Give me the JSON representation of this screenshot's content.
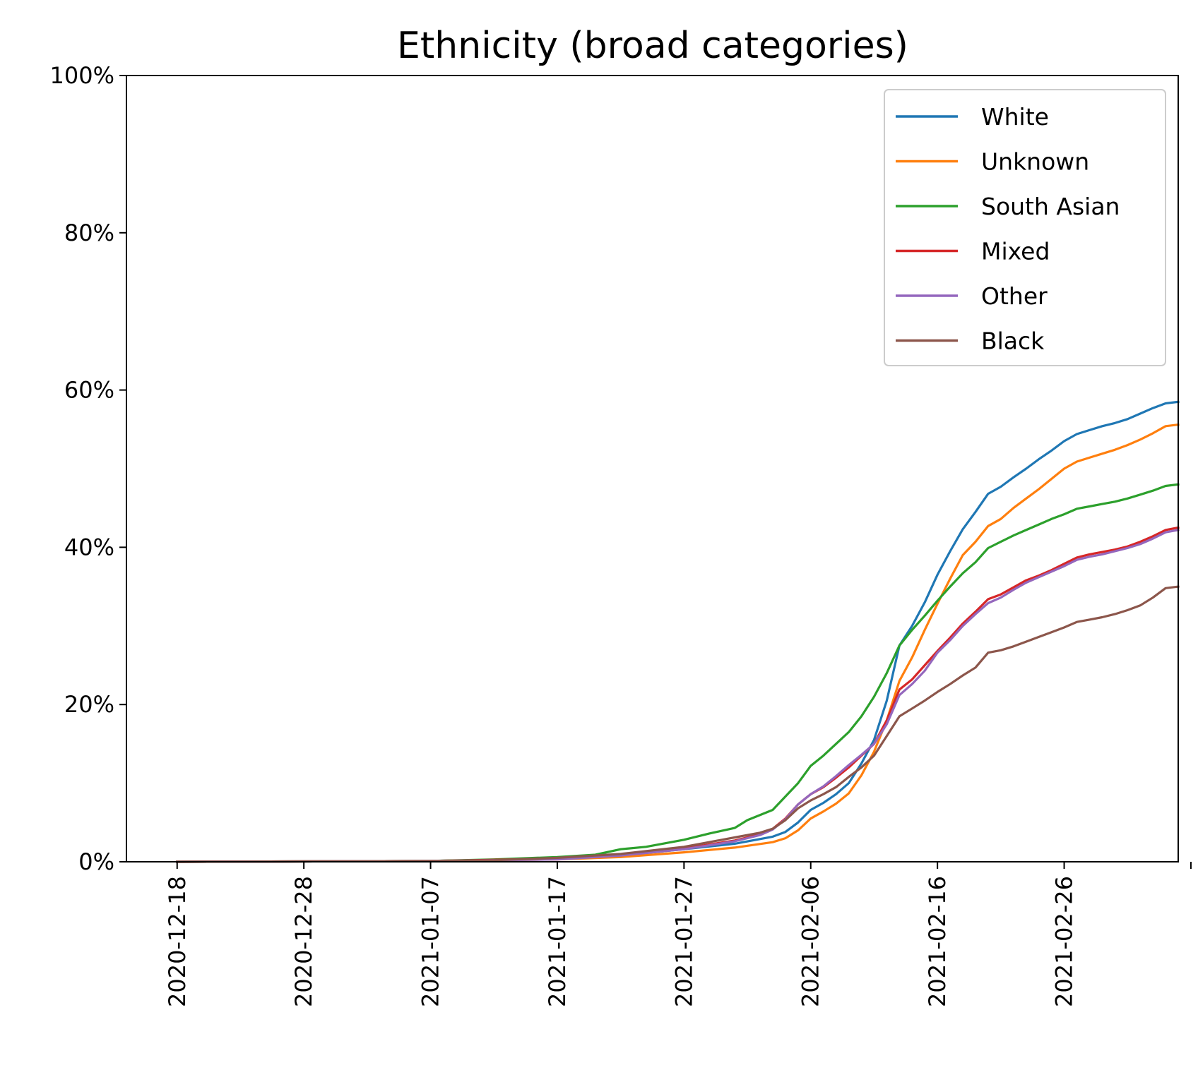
{
  "chart_data": {
    "type": "line",
    "title": "Ethnicity (broad categories)",
    "xlabel": "",
    "ylabel": "",
    "x_type": "date",
    "xlim": [
      "2020-12-14",
      "2021-03-07"
    ],
    "ylim": [
      0,
      100
    ],
    "y_unit": "%",
    "yticks": [
      0,
      20,
      40,
      60,
      80,
      100
    ],
    "ytick_labels": [
      "0%",
      "20%",
      "40%",
      "60%",
      "80%",
      "100%"
    ],
    "xticks": [
      "2020-12-18",
      "2020-12-28",
      "2021-01-07",
      "2021-01-17",
      "2021-01-27",
      "2021-02-06",
      "2021-02-16",
      "2021-02-26",
      "2021-03-08"
    ],
    "xtick_labels": [
      "2020-12-18",
      "2020-12-28",
      "2021-01-07",
      "2021-01-17",
      "2021-01-27",
      "2021-02-06",
      "2021-02-16",
      "2021-02-26",
      ""
    ],
    "grid": false,
    "legend_position": "top-right",
    "series": [
      {
        "name": "White",
        "color": "#1f77b4",
        "points": [
          [
            "2020-12-18",
            0
          ],
          [
            "2021-01-07",
            0.1
          ],
          [
            "2021-01-17",
            0.4
          ],
          [
            "2021-01-22",
            0.8
          ],
          [
            "2021-01-27",
            1.6
          ],
          [
            "2021-01-31",
            2.3
          ],
          [
            "2021-02-03",
            3.2
          ],
          [
            "2021-02-04",
            3.8
          ],
          [
            "2021-02-05",
            5.0
          ],
          [
            "2021-02-06",
            6.6
          ],
          [
            "2021-02-07",
            7.5
          ],
          [
            "2021-02-08",
            8.6
          ],
          [
            "2021-02-09",
            10.0
          ],
          [
            "2021-02-10",
            12.5
          ],
          [
            "2021-02-11",
            15.5
          ],
          [
            "2021-02-12",
            20.5
          ],
          [
            "2021-02-13",
            27.5
          ],
          [
            "2021-02-14",
            30.0
          ],
          [
            "2021-02-15",
            33.0
          ],
          [
            "2021-02-16",
            36.5
          ],
          [
            "2021-02-17",
            39.5
          ],
          [
            "2021-02-18",
            42.3
          ],
          [
            "2021-02-19",
            44.5
          ],
          [
            "2021-02-20",
            46.8
          ],
          [
            "2021-02-21",
            47.7
          ],
          [
            "2021-02-22",
            48.9
          ],
          [
            "2021-02-23",
            50.0
          ],
          [
            "2021-02-24",
            51.2
          ],
          [
            "2021-02-25",
            52.3
          ],
          [
            "2021-02-26",
            53.5
          ],
          [
            "2021-02-27",
            54.4
          ],
          [
            "2021-02-28",
            54.9
          ],
          [
            "2021-03-01",
            55.4
          ],
          [
            "2021-03-02",
            55.8
          ],
          [
            "2021-03-03",
            56.3
          ],
          [
            "2021-03-04",
            57.0
          ],
          [
            "2021-03-05",
            57.7
          ],
          [
            "2021-03-06",
            58.3
          ],
          [
            "2021-03-07",
            58.5
          ]
        ]
      },
      {
        "name": "Unknown",
        "color": "#ff7f0e",
        "points": [
          [
            "2020-12-18",
            0
          ],
          [
            "2021-01-07",
            0.1
          ],
          [
            "2021-01-17",
            0.3
          ],
          [
            "2021-01-22",
            0.6
          ],
          [
            "2021-01-27",
            1.2
          ],
          [
            "2021-01-31",
            1.8
          ],
          [
            "2021-02-03",
            2.5
          ],
          [
            "2021-02-04",
            3.0
          ],
          [
            "2021-02-05",
            4.0
          ],
          [
            "2021-02-06",
            5.5
          ],
          [
            "2021-02-07",
            6.4
          ],
          [
            "2021-02-08",
            7.4
          ],
          [
            "2021-02-09",
            8.7
          ],
          [
            "2021-02-10",
            11.0
          ],
          [
            "2021-02-11",
            14.0
          ],
          [
            "2021-02-12",
            18.0
          ],
          [
            "2021-02-13",
            23.0
          ],
          [
            "2021-02-14",
            26.0
          ],
          [
            "2021-02-15",
            29.5
          ],
          [
            "2021-02-16",
            32.8
          ],
          [
            "2021-02-17",
            36.0
          ],
          [
            "2021-02-18",
            39.0
          ],
          [
            "2021-02-19",
            40.7
          ],
          [
            "2021-02-20",
            42.7
          ],
          [
            "2021-02-21",
            43.6
          ],
          [
            "2021-02-22",
            45.0
          ],
          [
            "2021-02-23",
            46.2
          ],
          [
            "2021-02-24",
            47.4
          ],
          [
            "2021-02-25",
            48.7
          ],
          [
            "2021-02-26",
            50.0
          ],
          [
            "2021-02-27",
            50.9
          ],
          [
            "2021-02-28",
            51.4
          ],
          [
            "2021-03-01",
            51.9
          ],
          [
            "2021-03-02",
            52.4
          ],
          [
            "2021-03-03",
            53.0
          ],
          [
            "2021-03-04",
            53.7
          ],
          [
            "2021-03-05",
            54.5
          ],
          [
            "2021-03-06",
            55.4
          ],
          [
            "2021-03-07",
            55.6
          ]
        ]
      },
      {
        "name": "South Asian",
        "color": "#2ca02c",
        "points": [
          [
            "2020-12-18",
            0
          ],
          [
            "2021-01-07",
            0.1
          ],
          [
            "2021-01-12",
            0.3
          ],
          [
            "2021-01-17",
            0.6
          ],
          [
            "2021-01-20",
            0.9
          ],
          [
            "2021-01-22",
            1.6
          ],
          [
            "2021-01-24",
            1.9
          ],
          [
            "2021-01-27",
            2.8
          ],
          [
            "2021-01-29",
            3.6
          ],
          [
            "2021-01-31",
            4.3
          ],
          [
            "2021-02-01",
            5.3
          ],
          [
            "2021-02-03",
            6.6
          ],
          [
            "2021-02-04",
            8.3
          ],
          [
            "2021-02-05",
            10.0
          ],
          [
            "2021-02-06",
            12.2
          ],
          [
            "2021-02-07",
            13.5
          ],
          [
            "2021-02-08",
            15.0
          ],
          [
            "2021-02-09",
            16.5
          ],
          [
            "2021-02-10",
            18.5
          ],
          [
            "2021-02-11",
            21.0
          ],
          [
            "2021-02-12",
            24.0
          ],
          [
            "2021-02-13",
            27.5
          ],
          [
            "2021-02-14",
            29.5
          ],
          [
            "2021-02-15",
            31.3
          ],
          [
            "2021-02-16",
            33.2
          ],
          [
            "2021-02-17",
            35.0
          ],
          [
            "2021-02-18",
            36.7
          ],
          [
            "2021-02-19",
            38.1
          ],
          [
            "2021-02-20",
            39.9
          ],
          [
            "2021-02-21",
            40.7
          ],
          [
            "2021-02-22",
            41.5
          ],
          [
            "2021-02-23",
            42.2
          ],
          [
            "2021-02-24",
            42.9
          ],
          [
            "2021-02-25",
            43.6
          ],
          [
            "2021-02-26",
            44.2
          ],
          [
            "2021-02-27",
            44.9
          ],
          [
            "2021-02-28",
            45.2
          ],
          [
            "2021-03-01",
            45.5
          ],
          [
            "2021-03-02",
            45.8
          ],
          [
            "2021-03-03",
            46.2
          ],
          [
            "2021-03-04",
            46.7
          ],
          [
            "2021-03-05",
            47.2
          ],
          [
            "2021-03-06",
            47.8
          ],
          [
            "2021-03-07",
            48.0
          ]
        ]
      },
      {
        "name": "Mixed",
        "color": "#d62728",
        "points": [
          [
            "2020-12-18",
            0
          ],
          [
            "2021-01-07",
            0.1
          ],
          [
            "2021-01-17",
            0.4
          ],
          [
            "2021-01-22",
            0.9
          ],
          [
            "2021-01-27",
            1.7
          ],
          [
            "2021-01-31",
            2.7
          ],
          [
            "2021-02-02",
            3.5
          ],
          [
            "2021-02-03",
            4.2
          ],
          [
            "2021-02-04",
            5.5
          ],
          [
            "2021-02-05",
            7.3
          ],
          [
            "2021-02-06",
            8.6
          ],
          [
            "2021-02-07",
            9.5
          ],
          [
            "2021-02-08",
            10.7
          ],
          [
            "2021-02-09",
            12.0
          ],
          [
            "2021-02-10",
            13.5
          ],
          [
            "2021-02-11",
            15.0
          ],
          [
            "2021-02-12",
            18.0
          ],
          [
            "2021-02-13",
            21.9
          ],
          [
            "2021-02-14",
            23.2
          ],
          [
            "2021-02-15",
            25.0
          ],
          [
            "2021-02-16",
            26.8
          ],
          [
            "2021-02-17",
            28.5
          ],
          [
            "2021-02-18",
            30.3
          ],
          [
            "2021-02-19",
            31.8
          ],
          [
            "2021-02-20",
            33.4
          ],
          [
            "2021-02-21",
            34.0
          ],
          [
            "2021-02-22",
            34.9
          ],
          [
            "2021-02-23",
            35.8
          ],
          [
            "2021-02-24",
            36.4
          ],
          [
            "2021-02-25",
            37.1
          ],
          [
            "2021-02-26",
            37.9
          ],
          [
            "2021-02-27",
            38.7
          ],
          [
            "2021-02-28",
            39.1
          ],
          [
            "2021-03-01",
            39.4
          ],
          [
            "2021-03-02",
            39.7
          ],
          [
            "2021-03-03",
            40.1
          ],
          [
            "2021-03-04",
            40.7
          ],
          [
            "2021-03-05",
            41.4
          ],
          [
            "2021-03-06",
            42.2
          ],
          [
            "2021-03-07",
            42.5
          ]
        ]
      },
      {
        "name": "Other",
        "color": "#9467bd",
        "points": [
          [
            "2020-12-18",
            0
          ],
          [
            "2021-01-07",
            0.1
          ],
          [
            "2021-01-17",
            0.3
          ],
          [
            "2021-01-22",
            0.8
          ],
          [
            "2021-01-27",
            1.6
          ],
          [
            "2021-01-31",
            2.6
          ],
          [
            "2021-02-02",
            3.4
          ],
          [
            "2021-02-03",
            4.1
          ],
          [
            "2021-02-04",
            5.4
          ],
          [
            "2021-02-05",
            7.3
          ],
          [
            "2021-02-06",
            8.6
          ],
          [
            "2021-02-07",
            9.6
          ],
          [
            "2021-02-08",
            10.9
          ],
          [
            "2021-02-09",
            12.3
          ],
          [
            "2021-02-10",
            13.6
          ],
          [
            "2021-02-11",
            15.0
          ],
          [
            "2021-02-12",
            17.5
          ],
          [
            "2021-02-13",
            21.2
          ],
          [
            "2021-02-14",
            22.6
          ],
          [
            "2021-02-15",
            24.3
          ],
          [
            "2021-02-16",
            26.6
          ],
          [
            "2021-02-17",
            28.2
          ],
          [
            "2021-02-18",
            30.0
          ],
          [
            "2021-02-19",
            31.5
          ],
          [
            "2021-02-20",
            32.9
          ],
          [
            "2021-02-21",
            33.6
          ],
          [
            "2021-02-22",
            34.6
          ],
          [
            "2021-02-23",
            35.5
          ],
          [
            "2021-02-24",
            36.2
          ],
          [
            "2021-02-25",
            36.9
          ],
          [
            "2021-02-26",
            37.6
          ],
          [
            "2021-02-27",
            38.4
          ],
          [
            "2021-02-28",
            38.8
          ],
          [
            "2021-03-01",
            39.1
          ],
          [
            "2021-03-02",
            39.5
          ],
          [
            "2021-03-03",
            39.9
          ],
          [
            "2021-03-04",
            40.4
          ],
          [
            "2021-03-05",
            41.1
          ],
          [
            "2021-03-06",
            41.9
          ],
          [
            "2021-03-07",
            42.2
          ]
        ]
      },
      {
        "name": "Black",
        "color": "#8c564b",
        "points": [
          [
            "2020-12-18",
            0
          ],
          [
            "2021-01-07",
            0.1
          ],
          [
            "2021-01-12",
            0.2
          ],
          [
            "2021-01-17",
            0.5
          ],
          [
            "2021-01-22",
            1.0
          ],
          [
            "2021-01-27",
            1.9
          ],
          [
            "2021-01-30",
            2.8
          ],
          [
            "2021-01-31",
            3.1
          ],
          [
            "2021-02-02",
            3.7
          ],
          [
            "2021-02-03",
            4.2
          ],
          [
            "2021-02-04",
            5.3
          ],
          [
            "2021-02-05",
            6.8
          ],
          [
            "2021-02-06",
            7.8
          ],
          [
            "2021-02-07",
            8.6
          ],
          [
            "2021-02-08",
            9.5
          ],
          [
            "2021-02-09",
            10.8
          ],
          [
            "2021-02-10",
            12.0
          ],
          [
            "2021-02-11",
            13.5
          ],
          [
            "2021-02-12",
            16.0
          ],
          [
            "2021-02-13",
            18.5
          ],
          [
            "2021-02-14",
            19.5
          ],
          [
            "2021-02-15",
            20.5
          ],
          [
            "2021-02-16",
            21.6
          ],
          [
            "2021-02-17",
            22.6
          ],
          [
            "2021-02-18",
            23.7
          ],
          [
            "2021-02-19",
            24.7
          ],
          [
            "2021-02-20",
            26.6
          ],
          [
            "2021-02-21",
            26.9
          ],
          [
            "2021-02-22",
            27.4
          ],
          [
            "2021-02-23",
            28.0
          ],
          [
            "2021-02-24",
            28.6
          ],
          [
            "2021-02-25",
            29.2
          ],
          [
            "2021-02-26",
            29.8
          ],
          [
            "2021-02-27",
            30.5
          ],
          [
            "2021-02-28",
            30.8
          ],
          [
            "2021-03-01",
            31.1
          ],
          [
            "2021-03-02",
            31.5
          ],
          [
            "2021-03-03",
            32.0
          ],
          [
            "2021-03-04",
            32.6
          ],
          [
            "2021-03-05",
            33.6
          ],
          [
            "2021-03-06",
            34.8
          ],
          [
            "2021-03-07",
            35.0
          ]
        ]
      }
    ]
  }
}
